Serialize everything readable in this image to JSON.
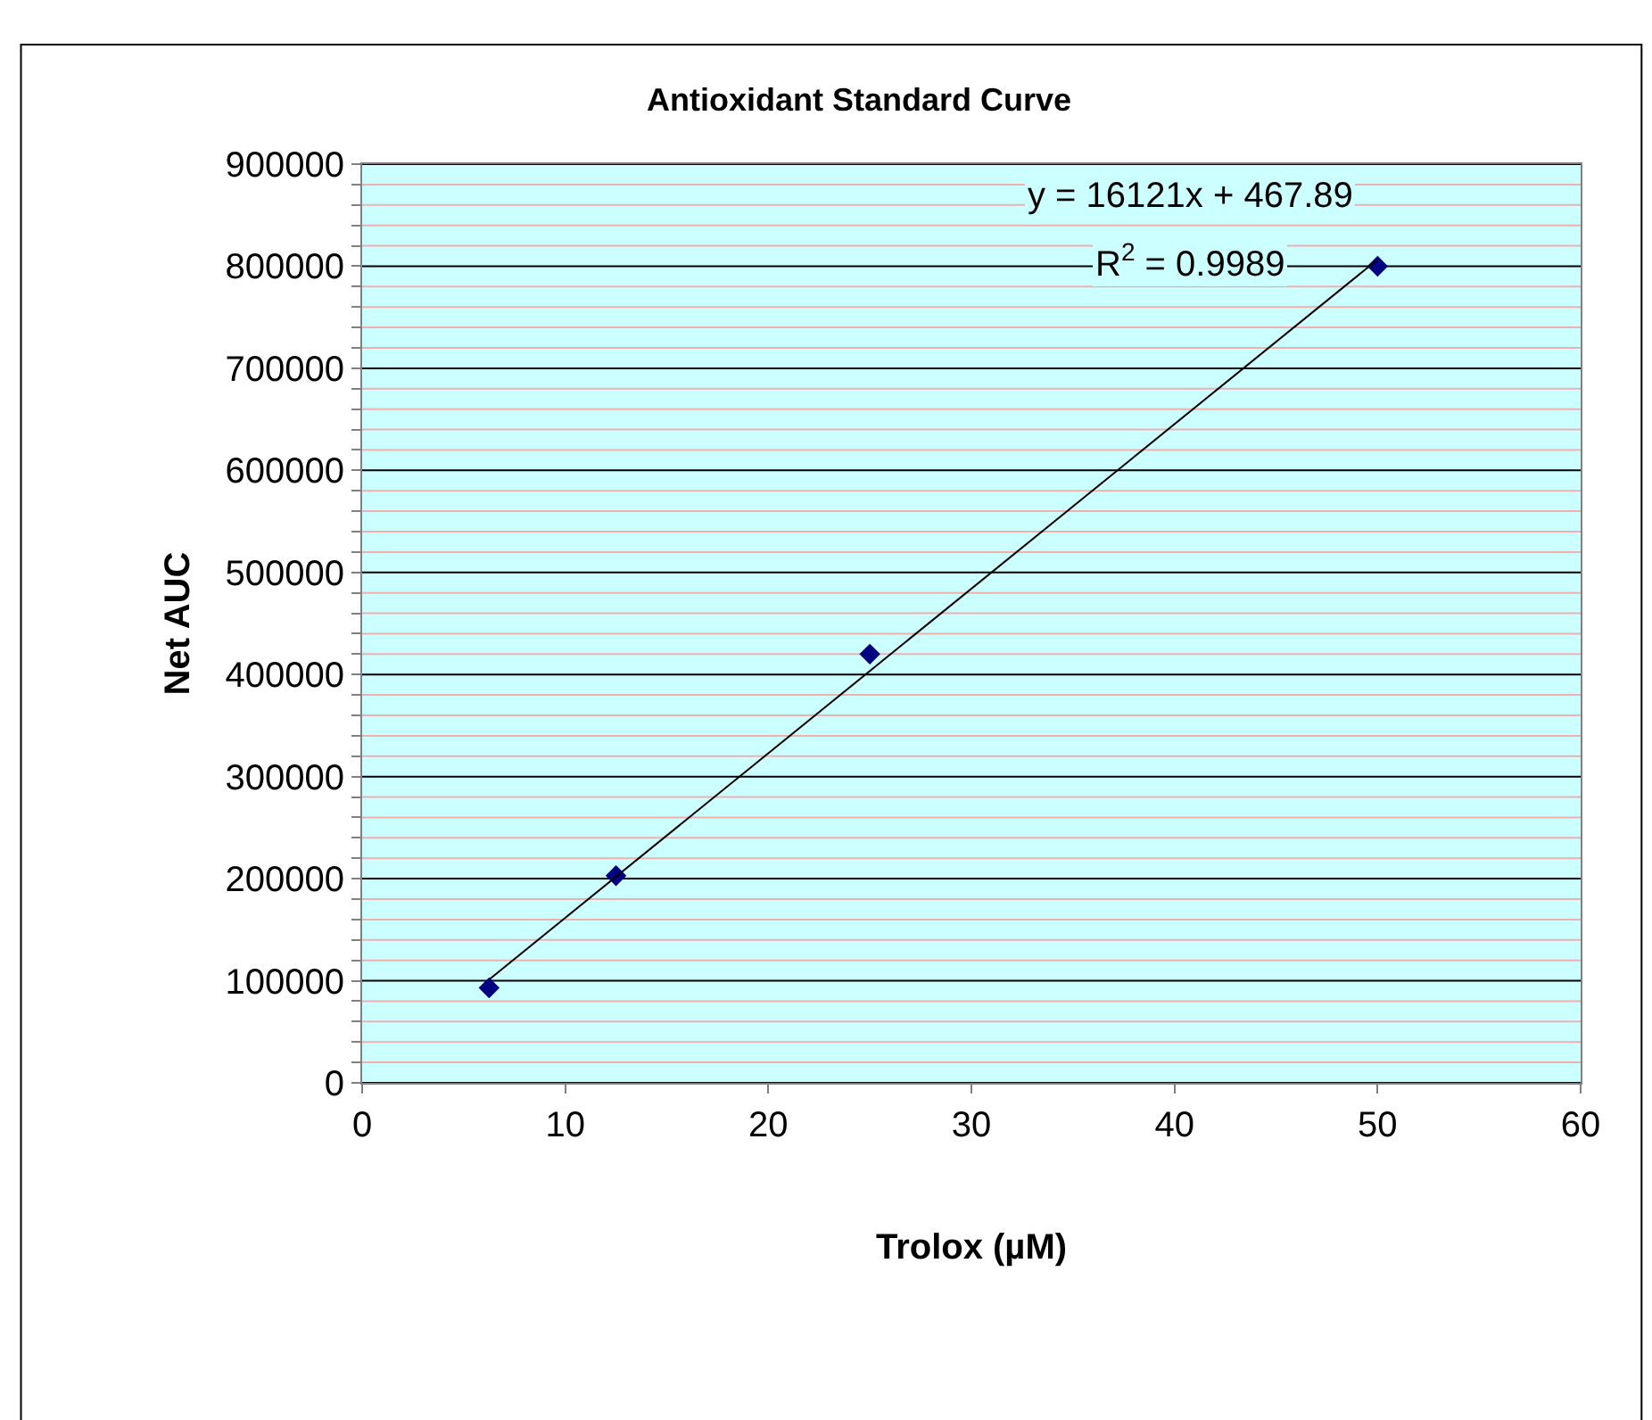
{
  "chart_data": {
    "type": "scatter",
    "title": "Antioxidant Standard Curve",
    "xlabel": "Trolox (µM)",
    "ylabel": "Net AUC",
    "xlim": [
      0,
      60
    ],
    "xticks": [
      0,
      10,
      20,
      30,
      40,
      50,
      60
    ],
    "ylim": [
      0,
      900000
    ],
    "yticks": [
      0,
      {
        "value": 20000,
        "label": null
      },
      {
        "value": 40000,
        "label": null
      },
      {
        "value": 60000,
        "label": null
      },
      {
        "value": 80000,
        "label": null
      },
      100000,
      {
        "value": 120000,
        "label": null
      },
      {
        "value": 140000,
        "label": null
      },
      {
        "value": 160000,
        "label": null
      },
      {
        "value": 180000,
        "label": null
      },
      200000,
      {
        "value": 220000,
        "label": null
      },
      {
        "value": 240000,
        "label": null
      },
      {
        "value": 260000,
        "label": null
      },
      {
        "value": 280000,
        "label": null
      },
      300000,
      {
        "value": 320000,
        "label": null
      },
      {
        "value": 340000,
        "label": null
      },
      {
        "value": 360000,
        "label": null
      },
      {
        "value": 380000,
        "label": null
      },
      400000,
      {
        "value": 420000,
        "label": null
      },
      {
        "value": 440000,
        "label": null
      },
      {
        "value": 460000,
        "label": null
      },
      {
        "value": 480000,
        "label": null
      },
      500000,
      {
        "value": 520000,
        "label": null
      },
      {
        "value": 540000,
        "label": null
      },
      {
        "value": 560000,
        "label": null
      },
      {
        "value": 580000,
        "label": null
      },
      600000,
      {
        "value": 620000,
        "label": null
      },
      {
        "value": 640000,
        "label": null
      },
      {
        "value": 660000,
        "label": null
      },
      {
        "value": 680000,
        "label": null
      },
      700000,
      {
        "value": 720000,
        "label": null
      },
      {
        "value": 740000,
        "label": null
      },
      {
        "value": 760000,
        "label": null
      },
      {
        "value": 780000,
        "label": null
      },
      800000,
      {
        "value": 820000,
        "label": null
      },
      {
        "value": 840000,
        "label": null
      },
      {
        "value": 860000,
        "label": null
      },
      {
        "value": 880000,
        "label": null
      },
      900000
    ],
    "grid": "y",
    "marker": "diamond",
    "series": [
      {
        "color": "#000080",
        "x": [
          6.25,
          12.5,
          25,
          50
        ],
        "values": [
          93000,
          203000,
          420000,
          800000
        ]
      },
      {
        "type": "line",
        "color": "#000000",
        "x": [
          6.25,
          50
        ],
        "values": [
          101200,
          806500
        ],
        "line_style": "solid",
        "marker": "none"
      }
    ],
    "annotations": [
      "y = 16121x + 467.89",
      "R$^{2}$ = 0.9989"
    ]
  }
}
